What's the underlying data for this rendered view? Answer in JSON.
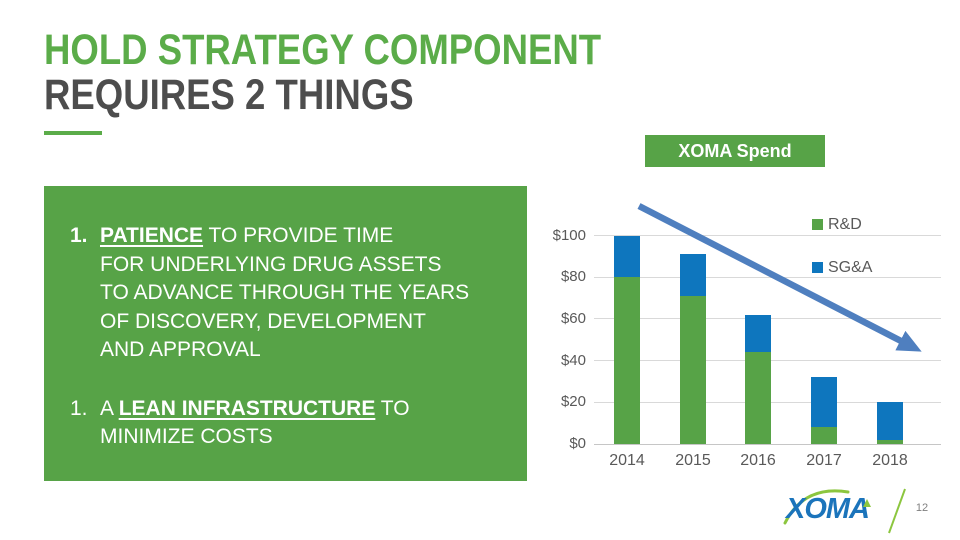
{
  "slide": {
    "title_line1": "HOLD STRATEGY COMPONENT",
    "title_line2": "REQUIRES 2 THINGS",
    "page_number": "12"
  },
  "panel": {
    "items": [
      {
        "number": "1.",
        "before": "",
        "emphasis": "PATIENCE",
        "after": " TO PROVIDE TIME\nFOR UNDERLYING DRUG ASSETS\nTO ADVANCE THROUGH THE YEARS\nOF DISCOVERY, DEVELOPMENT\nAND APPROVAL"
      },
      {
        "number": "1.",
        "before": "A ",
        "emphasis": "LEAN INFRASTRUCTURE",
        "after": " TO\nMINIMIZE COSTS"
      }
    ]
  },
  "chart_header": {
    "label": "XOMA Spend"
  },
  "chart_data": {
    "type": "bar",
    "stacked": true,
    "title": "XOMA Spend",
    "categories": [
      "2014",
      "2015",
      "2016",
      "2017",
      "2018"
    ],
    "series": [
      {
        "name": "R&D",
        "color": "#57A347",
        "values": [
          80,
          71,
          44,
          8,
          2
        ]
      },
      {
        "name": "SG&A",
        "color": "#0E76BE",
        "values": [
          20,
          20,
          18,
          24,
          18
        ]
      }
    ],
    "yticks": [
      {
        "label": "$0",
        "value": 0
      },
      {
        "label": "$20",
        "value": 20
      },
      {
        "label": "$40",
        "value": 40
      },
      {
        "label": "$60",
        "value": 60
      },
      {
        "label": "$80",
        "value": 80
      },
      {
        "label": "$100",
        "value": 100
      }
    ],
    "ylim": [
      0,
      100
    ],
    "grid": true,
    "legend_position": "top-right",
    "annotation": {
      "trend_arrow": "downward",
      "arrow_color": "#4F7FBF"
    }
  },
  "logo": {
    "text": "XOMA"
  },
  "colors": {
    "green_primary": "#57A347",
    "green_title": "#5BAC49",
    "blue_bar": "#0E76BE",
    "arrow_blue": "#4F7FBF",
    "logo_blue": "#1B74BB",
    "logo_green": "#8CC63F",
    "axis_text": "#595959",
    "gridline": "#D9D9D9",
    "title_dark": "#4D4D4D"
  }
}
